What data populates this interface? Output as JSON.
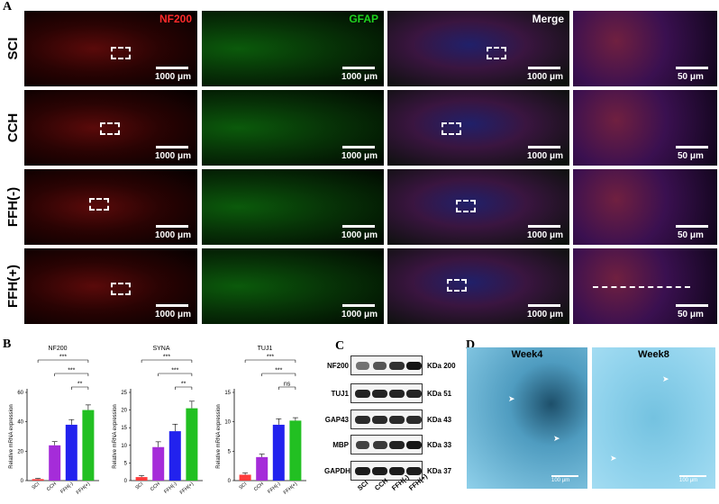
{
  "panels": {
    "A": "A",
    "B": "B",
    "C": "C",
    "D": "D"
  },
  "panel_a": {
    "channels": [
      "NF200",
      "GFAP",
      "Merge"
    ],
    "channel_colors": {
      "NF200": "#ff2a2a",
      "GFAP": "#1fd31f",
      "Merge": "#ffffff"
    },
    "rows": [
      "SCI",
      "CCH",
      "FFH(-)",
      "FFH(+)"
    ],
    "scale_big": "1000 μm",
    "scale_small": "50 μm"
  },
  "panel_c": {
    "rows": [
      {
        "protein": "NF200",
        "kda": "KDa 200",
        "levels": [
          0.35,
          0.55,
          0.8,
          1.0
        ]
      },
      {
        "protein": "TUJ1",
        "kda": "KDa 51",
        "levels": [
          0.9,
          0.9,
          0.9,
          0.9
        ]
      },
      {
        "protein": "GAP43",
        "kda": "KDa 43",
        "levels": [
          0.85,
          0.85,
          0.85,
          0.85
        ]
      },
      {
        "protein": "MBP",
        "kda": "KDa 33",
        "levels": [
          0.7,
          0.75,
          0.9,
          1.0
        ]
      },
      {
        "protein": "GAPDH",
        "kda": "KDa 37",
        "levels": [
          0.95,
          0.95,
          0.95,
          0.95
        ]
      }
    ],
    "lanes": [
      "SCI",
      "CCH",
      "FFH(-)",
      "FFH(+)"
    ]
  },
  "panel_d": {
    "titles": [
      "Week4",
      "Week8"
    ],
    "scale": "100 μm"
  },
  "chart_data": [
    {
      "type": "bar",
      "title": "NF200",
      "ylabel": "Relative mRNA expression",
      "categories": [
        "SCI",
        "CCH",
        "FFH(-)",
        "FFH(+)"
      ],
      "values": [
        1,
        24,
        38,
        48
      ],
      "errors": [
        0.5,
        2.5,
        3.5,
        3.5
      ],
      "colors": [
        "#ff3b3b",
        "#a52cd9",
        "#2222ee",
        "#22c022"
      ],
      "ylim": [
        0,
        60
      ],
      "yticks": [
        0,
        20,
        40,
        60
      ],
      "significance": [
        {
          "from": 0,
          "to": 3,
          "label": "***"
        },
        {
          "from": 1,
          "to": 3,
          "label": "***"
        },
        {
          "from": 2,
          "to": 3,
          "label": "**"
        }
      ]
    },
    {
      "type": "bar",
      "title": "SYNA",
      "ylabel": "Relative mRNA expression",
      "categories": [
        "SCI",
        "CCH",
        "FFH(-)",
        "FFH(+)"
      ],
      "values": [
        1,
        9.5,
        14,
        20.5
      ],
      "errors": [
        0.4,
        1.5,
        2,
        2
      ],
      "colors": [
        "#ff3b3b",
        "#a52cd9",
        "#2222ee",
        "#22c022"
      ],
      "ylim": [
        0,
        25
      ],
      "yticks": [
        0,
        5,
        10,
        15,
        20,
        25
      ],
      "significance": [
        {
          "from": 0,
          "to": 3,
          "label": "***"
        },
        {
          "from": 1,
          "to": 3,
          "label": "***"
        },
        {
          "from": 2,
          "to": 3,
          "label": "**"
        }
      ]
    },
    {
      "type": "bar",
      "title": "TUJ1",
      "ylabel": "Relative mRNA expression",
      "categories": [
        "SCI",
        "CCH",
        "FFH(-)",
        "FFH(+)"
      ],
      "values": [
        1,
        4,
        9.5,
        10.2
      ],
      "errors": [
        0.3,
        0.5,
        1,
        0.5
      ],
      "colors": [
        "#ff3b3b",
        "#a52cd9",
        "#2222ee",
        "#22c022"
      ],
      "ylim": [
        0,
        15
      ],
      "yticks": [
        0,
        5,
        10,
        15
      ],
      "significance": [
        {
          "from": 0,
          "to": 3,
          "label": "***"
        },
        {
          "from": 1,
          "to": 3,
          "label": "***"
        },
        {
          "from": 2,
          "to": 3,
          "label": "ns"
        }
      ]
    }
  ]
}
